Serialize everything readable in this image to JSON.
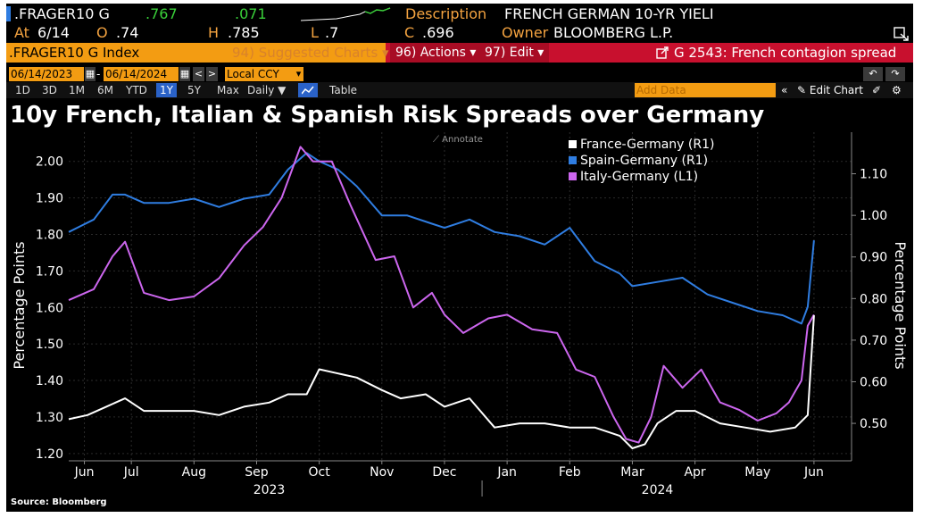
{
  "quote": {
    "ticker": ".FRAGER10 G",
    "last": ".767",
    "change": ".071",
    "description_label": "Description",
    "description": "FRENCH GERMAN 10-YR YIELI",
    "at_label": "At",
    "at_date": "6/14",
    "open_label": "O",
    "open": ".74",
    "high_label": "H",
    "high": ".785",
    "low_label": "L",
    "low": ".7",
    "close_label": "C",
    "close": ".696",
    "owner_label": "Owner",
    "owner": "BLOOMBERG L.P."
  },
  "toolbar": {
    "security": ".FRAGER10 G Index",
    "suggested": "94) Suggested Charts ▾",
    "actions": "96) Actions ▾",
    "edit": "97) Edit ▾",
    "related": "G 2543: French contagion spread",
    "add_data": "Add Data",
    "edit_chart": "Edit Chart"
  },
  "range": {
    "start": "06/14/2023",
    "sep": "-",
    "end": "06/14/2024",
    "currency": "Local CCY"
  },
  "periods": [
    "1D",
    "3D",
    "1M",
    "6M",
    "YTD",
    "1Y",
    "5Y",
    "Max",
    "Daily ▼",
    "Table"
  ],
  "colors": {
    "france": "#ffffff",
    "spain": "#2f7de1",
    "italy": "#cc66ee",
    "grid": "#2b2b2b",
    "axis_text": "#ffffff"
  },
  "chart_data": {
    "type": "line",
    "title": "10y French, Italian & Spanish Risk Spreads over Germany",
    "source": "Source: Bloomberg",
    "annotate_label": "⟋ Annotate",
    "left_axis": {
      "label": "Percentage Points",
      "range": [
        1.18,
        2.08
      ],
      "ticks": [
        "2.00",
        "1.90",
        "1.80",
        "1.70",
        "1.60",
        "1.50",
        "1.40",
        "1.30",
        "1.20"
      ],
      "tick_values": [
        2.0,
        1.9,
        1.8,
        1.7,
        1.6,
        1.5,
        1.4,
        1.3,
        1.2
      ]
    },
    "right_axis": {
      "label": "Percentage Points",
      "range": [
        0.41,
        1.2
      ],
      "ticks": [
        "1.10",
        "1.00",
        "0.90",
        "0.80",
        "0.70",
        "0.60",
        "0.50"
      ],
      "tick_values": [
        1.1,
        1.0,
        0.9,
        0.8,
        0.7,
        0.6,
        0.5
      ]
    },
    "x_axis": {
      "range": [
        0,
        12.5
      ],
      "months": [
        "Jun",
        "Jul",
        "Aug",
        "Sep",
        "Oct",
        "Nov",
        "Dec",
        "Jan",
        "Feb",
        "Mar",
        "Apr",
        "May",
        "Jun"
      ],
      "month_positions": [
        0.25,
        1.0,
        2.0,
        3.0,
        4.0,
        5.0,
        6.0,
        7.0,
        8.0,
        9.0,
        10.0,
        11.0,
        11.9
      ],
      "years": [
        "2023",
        "2024"
      ],
      "year_positions": [
        3.2,
        9.4
      ],
      "year_divider": 6.6
    },
    "series": [
      {
        "name": "France-Germany (R1)",
        "axis": "right",
        "color_key": "france",
        "x": [
          0,
          0.3,
          0.6,
          0.9,
          1.2,
          1.6,
          2.0,
          2.4,
          2.8,
          3.2,
          3.5,
          3.8,
          4.0,
          4.3,
          4.6,
          5.0,
          5.3,
          5.7,
          6.0,
          6.4,
          6.8,
          7.2,
          7.6,
          8.0,
          8.4,
          8.8,
          9.0,
          9.2,
          9.4,
          9.7,
          10.0,
          10.4,
          10.8,
          11.2,
          11.6,
          11.8,
          11.9
        ],
        "y": [
          0.51,
          0.52,
          0.54,
          0.56,
          0.53,
          0.53,
          0.53,
          0.52,
          0.54,
          0.55,
          0.57,
          0.57,
          0.63,
          0.62,
          0.61,
          0.58,
          0.56,
          0.57,
          0.54,
          0.56,
          0.49,
          0.5,
          0.5,
          0.49,
          0.49,
          0.47,
          0.44,
          0.45,
          0.5,
          0.53,
          0.53,
          0.5,
          0.49,
          0.48,
          0.49,
          0.52,
          0.76
        ]
      },
      {
        "name": "Spain-Germany (R1)",
        "axis": "right",
        "color_key": "spain",
        "x": [
          0,
          0.4,
          0.7,
          0.9,
          1.2,
          1.6,
          2.0,
          2.4,
          2.8,
          3.2,
          3.5,
          3.8,
          4.0,
          4.3,
          4.6,
          5.0,
          5.4,
          5.8,
          6.0,
          6.4,
          6.8,
          7.2,
          7.6,
          8.0,
          8.4,
          8.8,
          9.0,
          9.4,
          9.8,
          10.2,
          10.6,
          11.0,
          11.4,
          11.7,
          11.8,
          11.9
        ],
        "y": [
          0.96,
          0.99,
          1.05,
          1.05,
          1.03,
          1.03,
          1.04,
          1.02,
          1.04,
          1.05,
          1.11,
          1.15,
          1.13,
          1.11,
          1.07,
          1.0,
          1.0,
          0.98,
          0.97,
          0.99,
          0.96,
          0.95,
          0.93,
          0.97,
          0.89,
          0.86,
          0.83,
          0.84,
          0.85,
          0.81,
          0.79,
          0.77,
          0.76,
          0.74,
          0.78,
          0.94
        ]
      },
      {
        "name": "Italy-Germany (L1)",
        "axis": "left",
        "color_key": "italy",
        "x": [
          0,
          0.4,
          0.7,
          0.9,
          1.2,
          1.6,
          2.0,
          2.4,
          2.8,
          3.1,
          3.4,
          3.7,
          3.9,
          4.2,
          4.5,
          4.9,
          5.2,
          5.5,
          5.8,
          6.0,
          6.3,
          6.7,
          7.0,
          7.4,
          7.8,
          8.1,
          8.4,
          8.7,
          8.9,
          9.1,
          9.3,
          9.5,
          9.8,
          10.1,
          10.4,
          10.7,
          11.0,
          11.3,
          11.5,
          11.7,
          11.8,
          11.9
        ],
        "y": [
          1.62,
          1.65,
          1.74,
          1.78,
          1.64,
          1.62,
          1.63,
          1.68,
          1.77,
          1.82,
          1.9,
          2.04,
          2.0,
          2.0,
          1.88,
          1.73,
          1.74,
          1.6,
          1.64,
          1.58,
          1.53,
          1.57,
          1.58,
          1.54,
          1.53,
          1.43,
          1.41,
          1.3,
          1.24,
          1.23,
          1.3,
          1.44,
          1.38,
          1.43,
          1.34,
          1.32,
          1.29,
          1.31,
          1.34,
          1.4,
          1.55,
          1.58
        ]
      }
    ]
  }
}
